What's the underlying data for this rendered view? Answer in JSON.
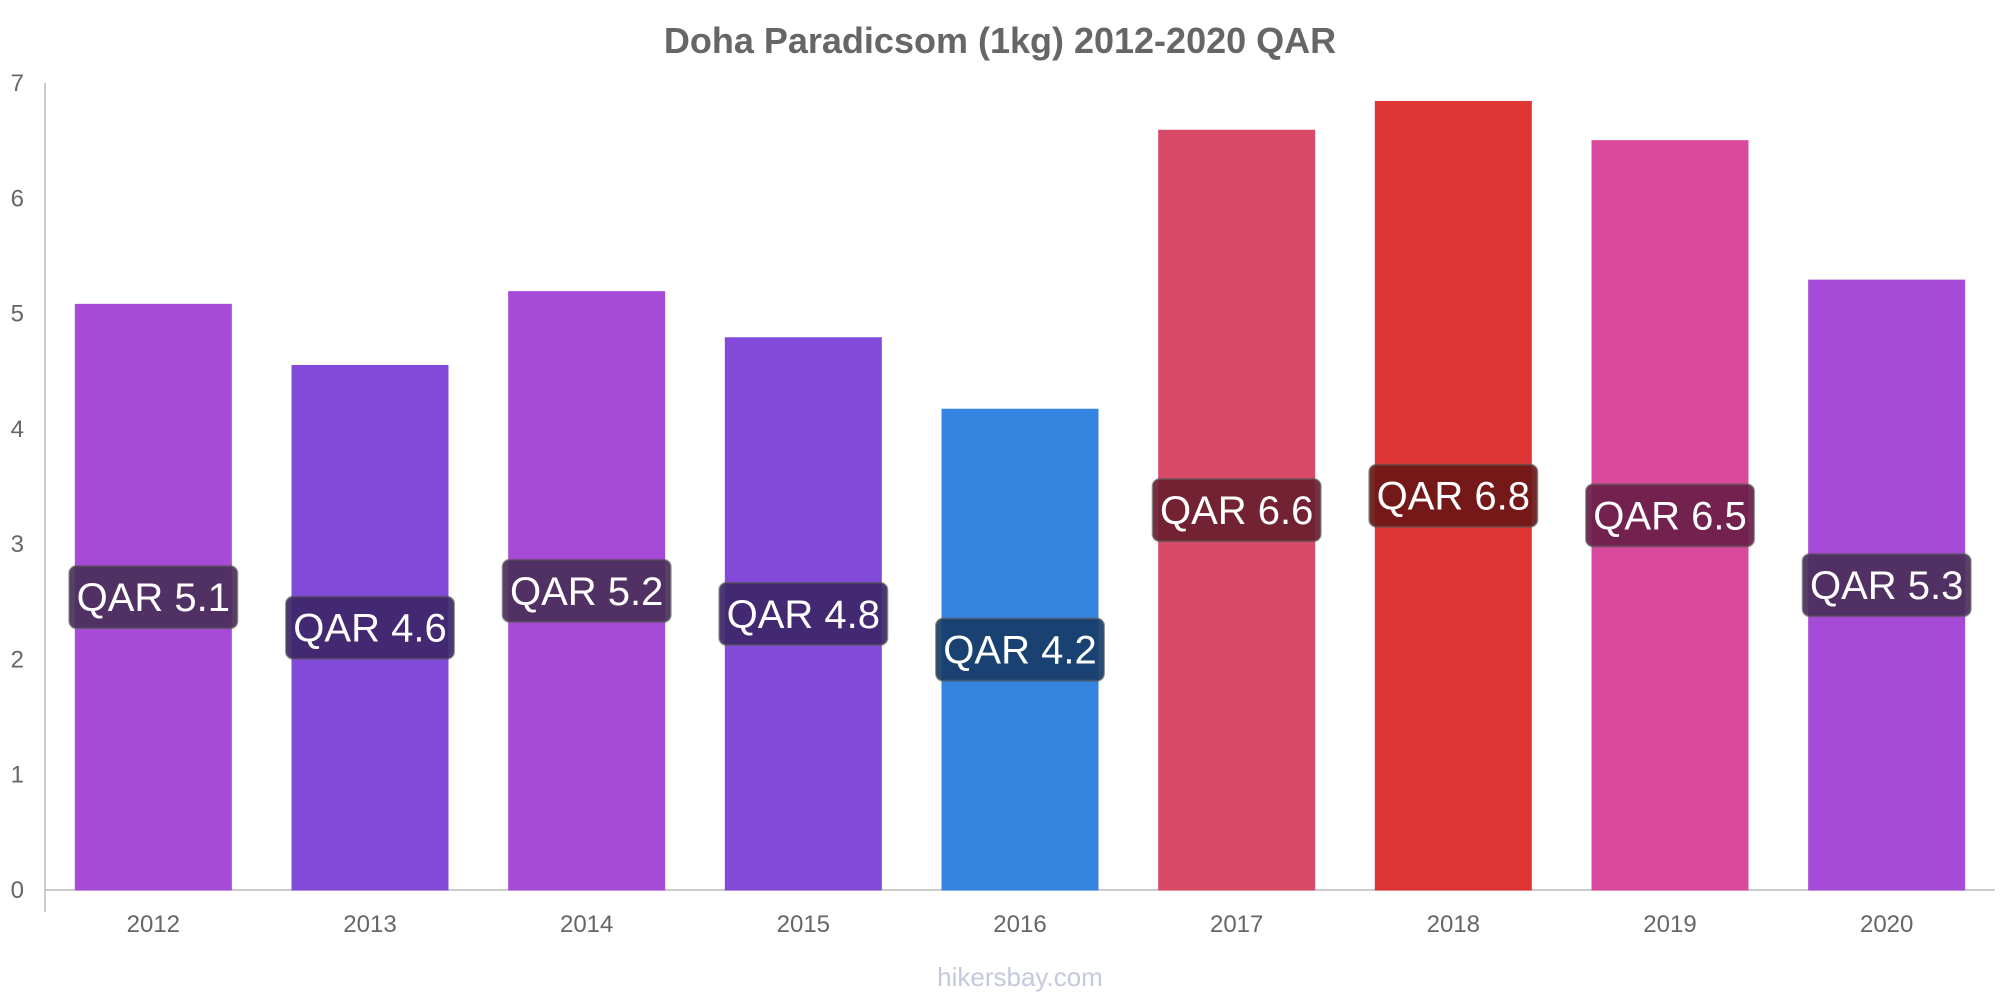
{
  "chart_data": {
    "type": "bar",
    "title": "Doha Paradicsom (1kg) 2012-2020 QAR",
    "categories": [
      "2012",
      "2013",
      "2014",
      "2015",
      "2016",
      "2017",
      "2018",
      "2019",
      "2020"
    ],
    "values": [
      5.08,
      4.55,
      5.19,
      4.79,
      4.17,
      6.59,
      6.84,
      6.5,
      5.29
    ],
    "data_labels": [
      "QAR 5.1",
      "QAR 4.6",
      "QAR 5.2",
      "QAR 4.8",
      "QAR 4.2",
      "QAR 6.6",
      "QAR 6.8",
      "QAR 6.5",
      "QAR 5.3"
    ],
    "bar_colors": [
      "#a64ad8",
      "#814ad8",
      "#a64ad8",
      "#814ad8",
      "#3584e0",
      "#d94a68",
      "#e03535",
      "#d94a9c",
      "#a64ad8"
    ],
    "label_bg_colors": [
      "#4a2f5a",
      "#3d2669",
      "#4a2f5a",
      "#3d2669",
      "#173d68",
      "#6a1e30",
      "#6b1616",
      "#6a1e4a",
      "#4a2f5a"
    ],
    "ylim": [
      0,
      7
    ],
    "yticks": [
      0,
      1,
      2,
      3,
      4,
      5,
      6,
      7
    ],
    "xlabel": "",
    "ylabel": "",
    "grid": false,
    "legend": "none"
  },
  "footer": {
    "source": "hikersbay.com"
  }
}
